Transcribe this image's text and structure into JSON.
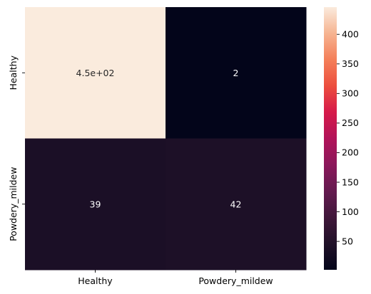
{
  "chart_data": {
    "type": "heatmap",
    "title": "",
    "xlabel": "",
    "ylabel": "",
    "x_categories": [
      "Healthy",
      "Powdery_mildew"
    ],
    "y_categories": [
      "Healthy",
      "Powdery_mildew"
    ],
    "values": [
      [
        446,
        2
      ],
      [
        39,
        42
      ]
    ],
    "annotations": [
      [
        "4.5e+02",
        "2"
      ],
      [
        "39",
        "42"
      ]
    ],
    "colorbar": {
      "vmin": 2,
      "vmax": 446,
      "ticks": [
        50,
        100,
        150,
        200,
        250,
        300,
        350,
        400
      ],
      "tick_labels": [
        "50",
        "100",
        "150",
        "200",
        "250",
        "300",
        "350",
        "400"
      ]
    },
    "colormap": "rocket",
    "annotation_colors": {
      "on_light": "#262626",
      "on_dark": "#ffffff"
    }
  }
}
